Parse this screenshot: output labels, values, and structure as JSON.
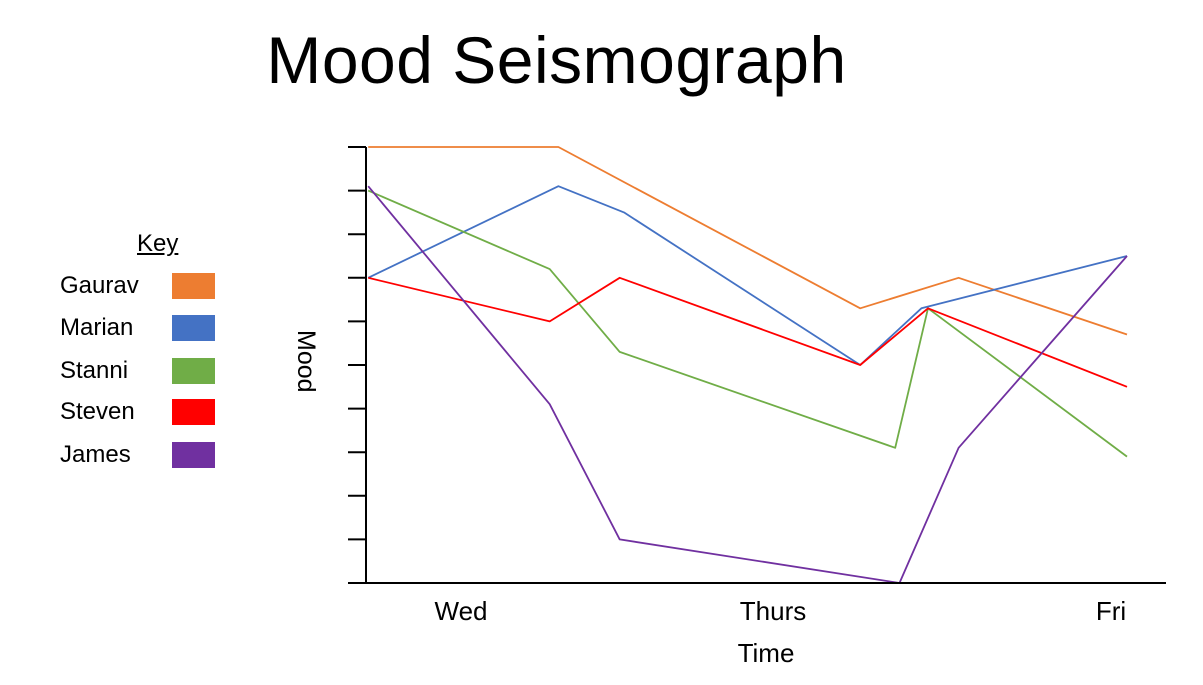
{
  "title": "Mood Seismograph",
  "key": {
    "title": "Key",
    "items": [
      {
        "label": "Gaurav",
        "color": "#ED7D31"
      },
      {
        "label": "Marian",
        "color": "#4472C4"
      },
      {
        "label": "Stanni",
        "color": "#70AD47"
      },
      {
        "label": "Steven",
        "color": "#FF0000"
      },
      {
        "label": "James",
        "color": "#7030A0"
      }
    ]
  },
  "chart_data": {
    "type": "line",
    "title": "Mood Seismograph",
    "xlabel": "Time",
    "ylabel": "Mood",
    "x_tick_labels": [
      "Wed",
      "Thurs",
      "Fri"
    ],
    "x_tick_positions": [
      1,
      2,
      3
    ],
    "xlim": [
      0.5,
      3.5
    ],
    "ylim": [
      0,
      10
    ],
    "y_ticks": [
      0,
      1,
      2,
      3,
      4,
      5,
      6,
      7,
      8,
      9,
      10
    ],
    "y_tick_labels_shown": false,
    "grid": false,
    "legend_position": "left",
    "series": [
      {
        "name": "Gaurav",
        "color": "#ED7D31",
        "x": [
          0.51,
          1.38,
          2.76,
          3.21,
          3.98
        ],
        "y": [
          10.0,
          10.0,
          6.3,
          7.0,
          5.7
        ]
      },
      {
        "name": "Marian",
        "color": "#4472C4",
        "x": [
          0.51,
          1.38,
          1.68,
          2.76,
          3.04,
          3.98
        ],
        "y": [
          7.0,
          9.1,
          8.5,
          5.0,
          6.3,
          7.5
        ]
      },
      {
        "name": "Stanni",
        "color": "#70AD47",
        "x": [
          0.51,
          1.34,
          1.66,
          2.92,
          3.07,
          3.98
        ],
        "y": [
          9.0,
          7.2,
          5.3,
          3.1,
          6.3,
          2.9
        ]
      },
      {
        "name": "Steven",
        "color": "#FF0000",
        "x": [
          0.51,
          1.34,
          1.66,
          2.76,
          3.07,
          3.98
        ],
        "y": [
          7.0,
          6.0,
          7.0,
          5.0,
          6.3,
          4.5
        ]
      },
      {
        "name": "James",
        "color": "#7030A0",
        "x": [
          0.51,
          1.34,
          1.66,
          2.94,
          3.21,
          3.98
        ],
        "y": [
          9.1,
          4.1,
          1.0,
          0.0,
          3.1,
          7.5
        ]
      }
    ]
  }
}
